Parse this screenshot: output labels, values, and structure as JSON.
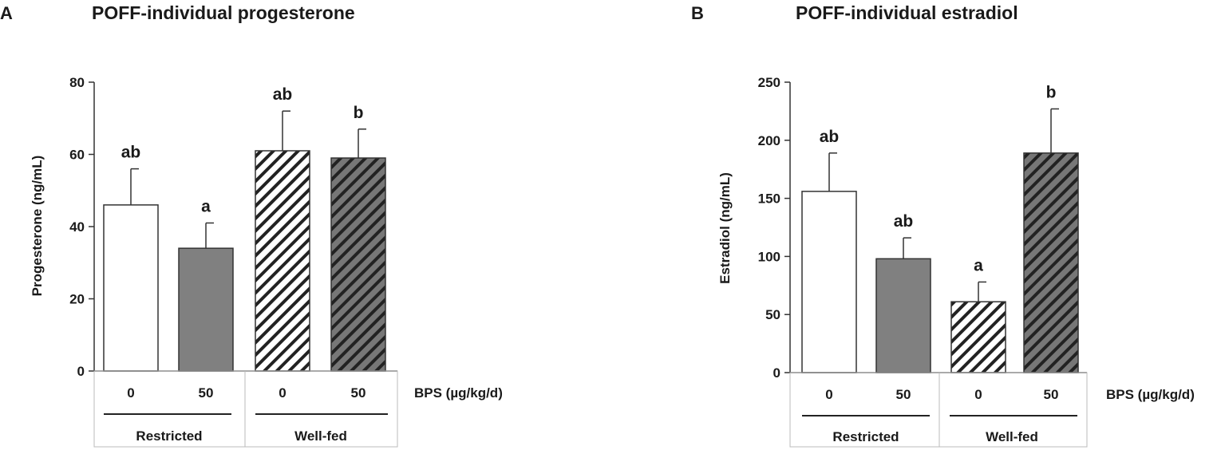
{
  "panels": [
    {
      "letter": "A",
      "bps_label": "BPS (µg/kg/d)",
      "groups": [
        "Restricted",
        "Well-fed"
      ],
      "chart_data": {
        "type": "bar",
        "title": "POFF-individual  progesterone",
        "ylabel": "Progesterone (ng/mL)",
        "xlabel": "BPS (µg/kg/d)",
        "ylim": [
          0,
          80
        ],
        "yticks": [
          0,
          20,
          40,
          60,
          80
        ],
        "categories": [
          "0",
          "50",
          "0",
          "50"
        ],
        "values": [
          46,
          34,
          61,
          59
        ],
        "errors": [
          10,
          7,
          11,
          8
        ],
        "significance": [
          "ab",
          "a",
          "ab",
          "b"
        ],
        "fills": [
          "white",
          "#808080",
          "hatch-light",
          "hatch-dark"
        ]
      }
    },
    {
      "letter": "B",
      "bps_label": "BPS (µg/kg/d)",
      "groups": [
        "Restricted",
        "Well-fed"
      ],
      "chart_data": {
        "type": "bar",
        "title": "POFF-individual  estradiol",
        "ylabel": "Estradiol (ng/mL)",
        "xlabel": "BPS (µg/kg/d)",
        "ylim": [
          0,
          250
        ],
        "yticks": [
          0,
          50,
          100,
          150,
          200,
          250
        ],
        "categories": [
          "0",
          "50",
          "0",
          "50"
        ],
        "values": [
          156,
          98,
          61,
          189
        ],
        "errors": [
          33,
          18,
          17,
          38
        ],
        "significance": [
          "ab",
          "ab",
          "a",
          "b"
        ],
        "fills": [
          "white",
          "#808080",
          "hatch-light",
          "hatch-dark"
        ]
      }
    }
  ]
}
